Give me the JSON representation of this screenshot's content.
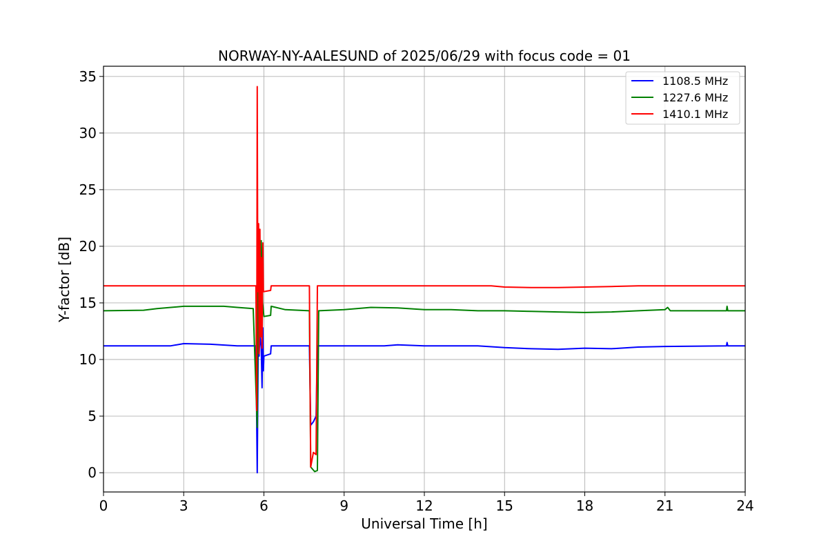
{
  "chart_data": {
    "type": "line",
    "title": "NORWAY-NY-AALESUND of 2025/06/29 with focus code = 01",
    "xlabel": "Universal Time [h]",
    "ylabel": "Y-factor [dB]",
    "xlim": [
      0,
      24
    ],
    "ylim": [
      -1.7,
      35.9
    ],
    "xticks": [
      0,
      3,
      6,
      9,
      12,
      15,
      18,
      21,
      24
    ],
    "yticks": [
      0,
      5,
      10,
      15,
      20,
      25,
      30,
      35
    ],
    "grid": true,
    "legend_position": "top-right",
    "series": [
      {
        "name": "1108.5 MHz",
        "color": "#0000ff",
        "points": [
          [
            0,
            11.2
          ],
          [
            2.5,
            11.2
          ],
          [
            3.0,
            11.4
          ],
          [
            4.0,
            11.35
          ],
          [
            5.0,
            11.2
          ],
          [
            5.6,
            11.2
          ],
          [
            5.7,
            11.2
          ],
          [
            5.75,
            0.0
          ],
          [
            5.78,
            9.5
          ],
          [
            5.8,
            13.9
          ],
          [
            5.82,
            10.3
          ],
          [
            5.85,
            12.3
          ],
          [
            5.9,
            11.0
          ],
          [
            5.93,
            7.5
          ],
          [
            5.96,
            12.8
          ],
          [
            5.98,
            9.0
          ],
          [
            6.0,
            10.3
          ],
          [
            6.25,
            10.5
          ],
          [
            6.27,
            11.2
          ],
          [
            7.7,
            11.2
          ],
          [
            7.75,
            4.2
          ],
          [
            7.85,
            4.5
          ],
          [
            7.95,
            5.0
          ],
          [
            8.0,
            11.2
          ],
          [
            10.5,
            11.2
          ],
          [
            11.0,
            11.3
          ],
          [
            12.0,
            11.2
          ],
          [
            14.0,
            11.2
          ],
          [
            15.0,
            11.05
          ],
          [
            16.0,
            10.95
          ],
          [
            17.0,
            10.9
          ],
          [
            18.0,
            11.0
          ],
          [
            19.0,
            10.95
          ],
          [
            20.0,
            11.1
          ],
          [
            21.0,
            11.15
          ],
          [
            23.3,
            11.2
          ],
          [
            23.32,
            11.5
          ],
          [
            23.35,
            11.2
          ],
          [
            24,
            11.2
          ]
        ]
      },
      {
        "name": "1227.6 MHz",
        "color": "#008000",
        "points": [
          [
            0,
            14.3
          ],
          [
            1.5,
            14.35
          ],
          [
            2.0,
            14.5
          ],
          [
            3.0,
            14.7
          ],
          [
            4.5,
            14.7
          ],
          [
            5.0,
            14.6
          ],
          [
            5.6,
            14.5
          ],
          [
            5.75,
            4.0
          ],
          [
            5.78,
            18.0
          ],
          [
            5.8,
            14.8
          ],
          [
            5.85,
            12.0
          ],
          [
            5.9,
            20.5
          ],
          [
            5.95,
            15.0
          ],
          [
            6.0,
            13.8
          ],
          [
            6.25,
            13.9
          ],
          [
            6.27,
            14.7
          ],
          [
            6.8,
            14.4
          ],
          [
            7.7,
            14.3
          ],
          [
            7.75,
            0.5
          ],
          [
            7.9,
            0.1
          ],
          [
            8.0,
            0.2
          ],
          [
            8.05,
            14.3
          ],
          [
            9.0,
            14.4
          ],
          [
            10.0,
            14.6
          ],
          [
            11.0,
            14.55
          ],
          [
            12.0,
            14.4
          ],
          [
            13.0,
            14.4
          ],
          [
            14.0,
            14.3
          ],
          [
            15.0,
            14.3
          ],
          [
            16.0,
            14.25
          ],
          [
            17.0,
            14.2
          ],
          [
            18.0,
            14.15
          ],
          [
            19.0,
            14.2
          ],
          [
            20.0,
            14.3
          ],
          [
            21.0,
            14.4
          ],
          [
            21.1,
            14.6
          ],
          [
            21.2,
            14.3
          ],
          [
            23.3,
            14.3
          ],
          [
            23.32,
            14.7
          ],
          [
            23.35,
            14.3
          ],
          [
            24,
            14.3
          ]
        ]
      },
      {
        "name": "1410.1 MHz",
        "color": "#ff0000",
        "points": [
          [
            0,
            16.5
          ],
          [
            5.7,
            16.5
          ],
          [
            5.73,
            5.5
          ],
          [
            5.75,
            34.1
          ],
          [
            5.77,
            16.0
          ],
          [
            5.8,
            22.0
          ],
          [
            5.82,
            10.5
          ],
          [
            5.85,
            21.5
          ],
          [
            5.88,
            12.0
          ],
          [
            5.9,
            19.0
          ],
          [
            5.93,
            11.0
          ],
          [
            5.96,
            20.3
          ],
          [
            5.98,
            16.0
          ],
          [
            6.0,
            16.0
          ],
          [
            6.25,
            16.1
          ],
          [
            6.27,
            16.5
          ],
          [
            7.7,
            16.5
          ],
          [
            7.75,
            0.5
          ],
          [
            7.85,
            1.8
          ],
          [
            7.95,
            1.6
          ],
          [
            8.0,
            16.5
          ],
          [
            14.5,
            16.5
          ],
          [
            15.0,
            16.4
          ],
          [
            16.0,
            16.35
          ],
          [
            17.0,
            16.35
          ],
          [
            18.0,
            16.4
          ],
          [
            19.0,
            16.45
          ],
          [
            20.0,
            16.5
          ],
          [
            24,
            16.5
          ]
        ]
      }
    ]
  }
}
